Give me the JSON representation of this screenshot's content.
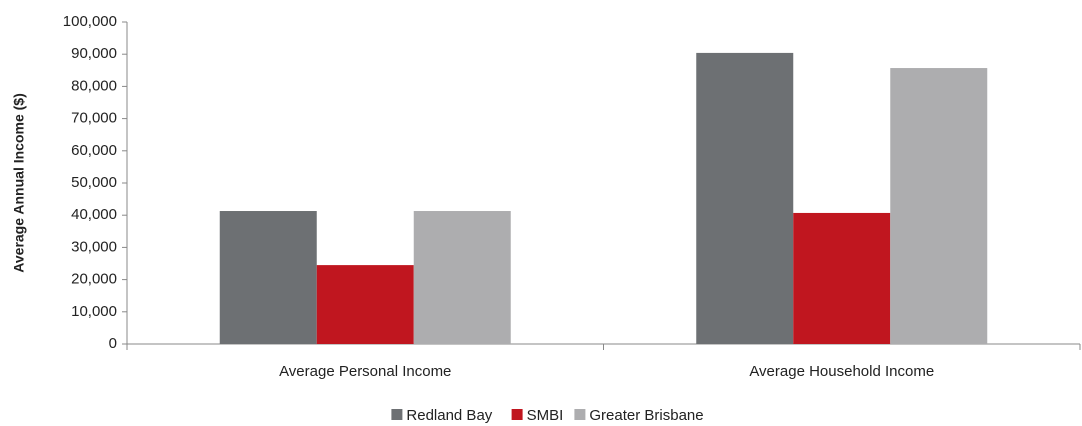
{
  "chart_data": {
    "type": "bar",
    "y_label": "Average Annual Income ($)",
    "categories": [
      "Average Personal Income",
      "Average Household Income"
    ],
    "series": [
      {
        "name": "Redland Bay",
        "color": "#6d7073",
        "values": [
          41300,
          90400
        ]
      },
      {
        "name": "SMBI",
        "color": "#c0161f",
        "values": [
          24500,
          40700
        ]
      },
      {
        "name": "Greater Brisbane",
        "color": "#adadaf",
        "values": [
          41300,
          85700
        ]
      }
    ],
    "ylim": [
      0,
      100000
    ],
    "yticks": [
      0,
      {
        "value": 10000,
        "label": "10,000"
      },
      {
        "value": 20000,
        "label": "20,000"
      },
      {
        "value": 30000,
        "label": "30,000"
      },
      {
        "value": 40000,
        "label": "40,000"
      },
      {
        "value": 50000,
        "label": "50,000"
      },
      {
        "value": 60000,
        "label": "60,000"
      },
      {
        "value": 70000,
        "label": "70,000"
      },
      {
        "value": 80000,
        "label": "80,000"
      },
      {
        "value": 90000,
        "label": "90,000"
      },
      {
        "value": 100000,
        "label": "100,000"
      }
    ],
    "legend": "bottom"
  }
}
